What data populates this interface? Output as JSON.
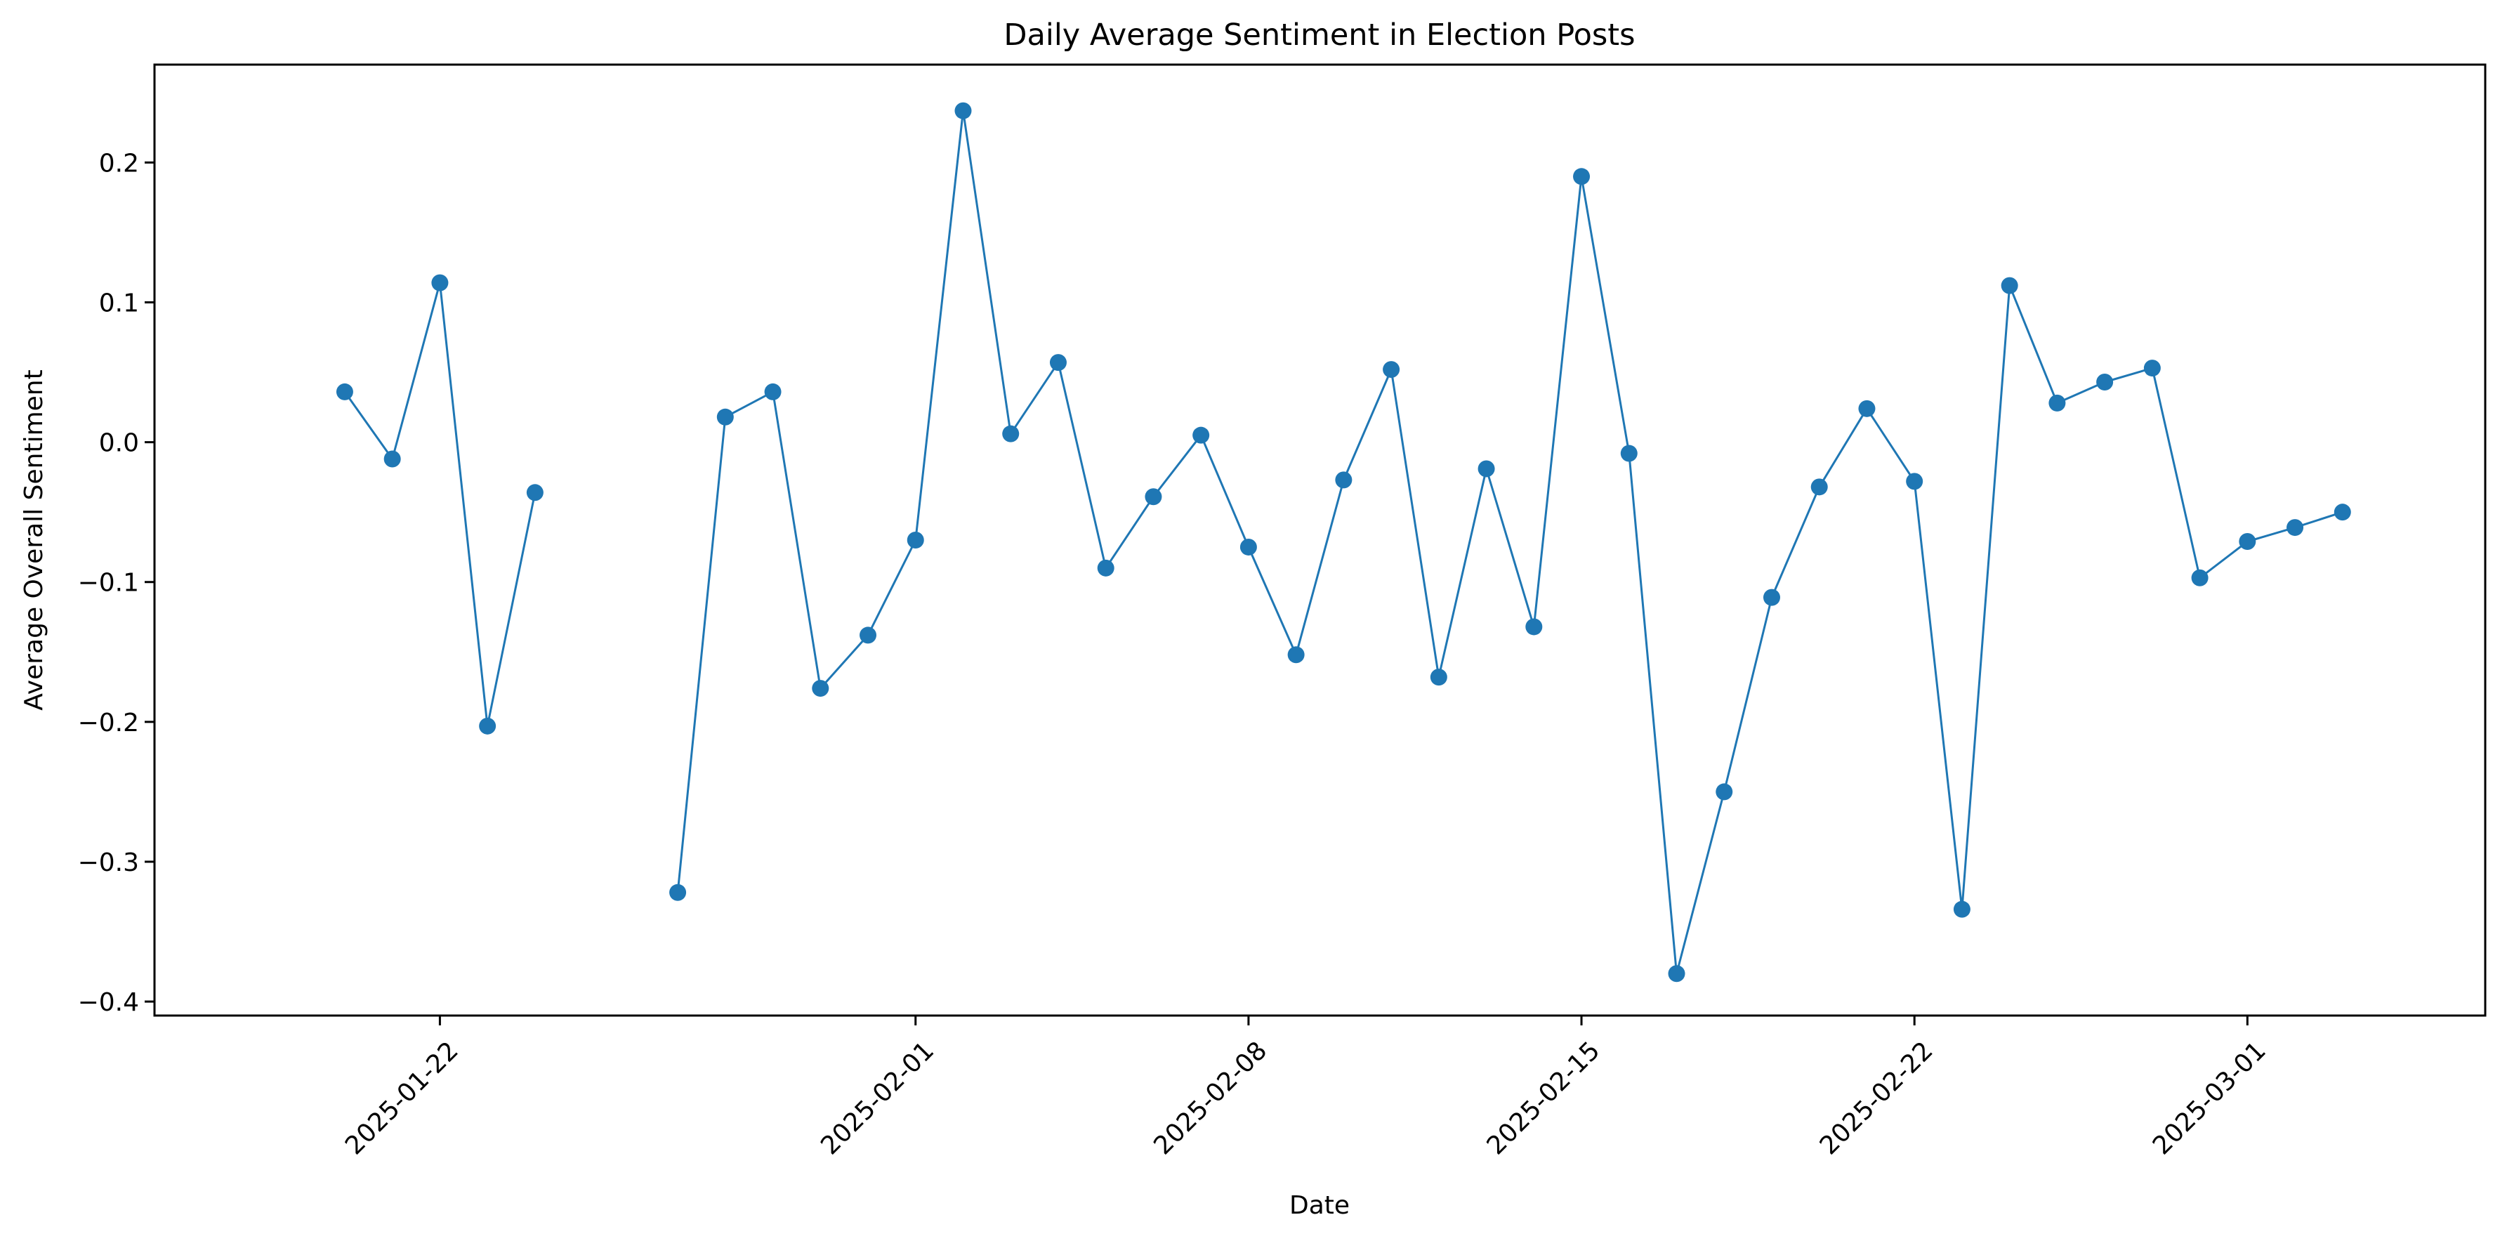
{
  "chart_data": {
    "type": "line",
    "title": "Daily Average Sentiment in Election Posts",
    "xlabel": "Date",
    "ylabel": "Average Overall Sentiment",
    "xlim": [
      "2025-01-16",
      "2025-03-06"
    ],
    "ylim": [
      -0.41,
      0.27
    ],
    "x_ticks": [
      "2025-01-22",
      "2025-02-01",
      "2025-02-08",
      "2025-02-15",
      "2025-02-22",
      "2025-03-01"
    ],
    "y_ticks": [
      0.2,
      0.1,
      0.0,
      -0.1,
      -0.2,
      -0.3,
      -0.4
    ],
    "y_tick_labels": [
      "0.2",
      "0.1",
      "0.0",
      "−0.1",
      "−0.2",
      "−0.3",
      "−0.4"
    ],
    "x_tick_rotation_deg": 45,
    "grid": false,
    "legend": false,
    "marker": "circle",
    "series": [
      {
        "color": "#1f77b4",
        "points": [
          {
            "x": "2025-01-20",
            "y": 0.036
          },
          {
            "x": "2025-01-21",
            "y": -0.012
          },
          {
            "x": "2025-01-22",
            "y": 0.114
          },
          {
            "x": "2025-01-23",
            "y": -0.203
          },
          {
            "x": "2025-01-24",
            "y": -0.036
          },
          {
            "x": "2025-01-25",
            "y": null
          },
          {
            "x": "2025-01-26",
            "y": null
          },
          {
            "x": "2025-01-27",
            "y": -0.322
          },
          {
            "x": "2025-01-28",
            "y": 0.018
          },
          {
            "x": "2025-01-29",
            "y": 0.036
          },
          {
            "x": "2025-01-30",
            "y": -0.176
          },
          {
            "x": "2025-01-31",
            "y": -0.138
          },
          {
            "x": "2025-02-01",
            "y": -0.07
          },
          {
            "x": "2025-02-02",
            "y": 0.237
          },
          {
            "x": "2025-02-03",
            "y": 0.006
          },
          {
            "x": "2025-02-04",
            "y": 0.057
          },
          {
            "x": "2025-02-05",
            "y": -0.09
          },
          {
            "x": "2025-02-06",
            "y": -0.039
          },
          {
            "x": "2025-02-07",
            "y": 0.005
          },
          {
            "x": "2025-02-08",
            "y": -0.075
          },
          {
            "x": "2025-02-09",
            "y": -0.152
          },
          {
            "x": "2025-02-10",
            "y": -0.027
          },
          {
            "x": "2025-02-11",
            "y": 0.052
          },
          {
            "x": "2025-02-12",
            "y": -0.168
          },
          {
            "x": "2025-02-13",
            "y": -0.019
          },
          {
            "x": "2025-02-14",
            "y": -0.132
          },
          {
            "x": "2025-02-15",
            "y": 0.19
          },
          {
            "x": "2025-02-16",
            "y": -0.008
          },
          {
            "x": "2025-02-17",
            "y": -0.38
          },
          {
            "x": "2025-02-18",
            "y": -0.25
          },
          {
            "x": "2025-02-19",
            "y": -0.111
          },
          {
            "x": "2025-02-20",
            "y": -0.032
          },
          {
            "x": "2025-02-21",
            "y": 0.024
          },
          {
            "x": "2025-02-22",
            "y": -0.028
          },
          {
            "x": "2025-02-23",
            "y": -0.334
          },
          {
            "x": "2025-02-24",
            "y": 0.112
          },
          {
            "x": "2025-02-25",
            "y": 0.028
          },
          {
            "x": "2025-02-26",
            "y": 0.043
          },
          {
            "x": "2025-02-27",
            "y": 0.053
          },
          {
            "x": "2025-02-28",
            "y": -0.097
          },
          {
            "x": "2025-03-01",
            "y": -0.071
          },
          {
            "x": "2025-03-02",
            "y": -0.061
          },
          {
            "x": "2025-03-03",
            "y": -0.05
          }
        ]
      }
    ]
  }
}
